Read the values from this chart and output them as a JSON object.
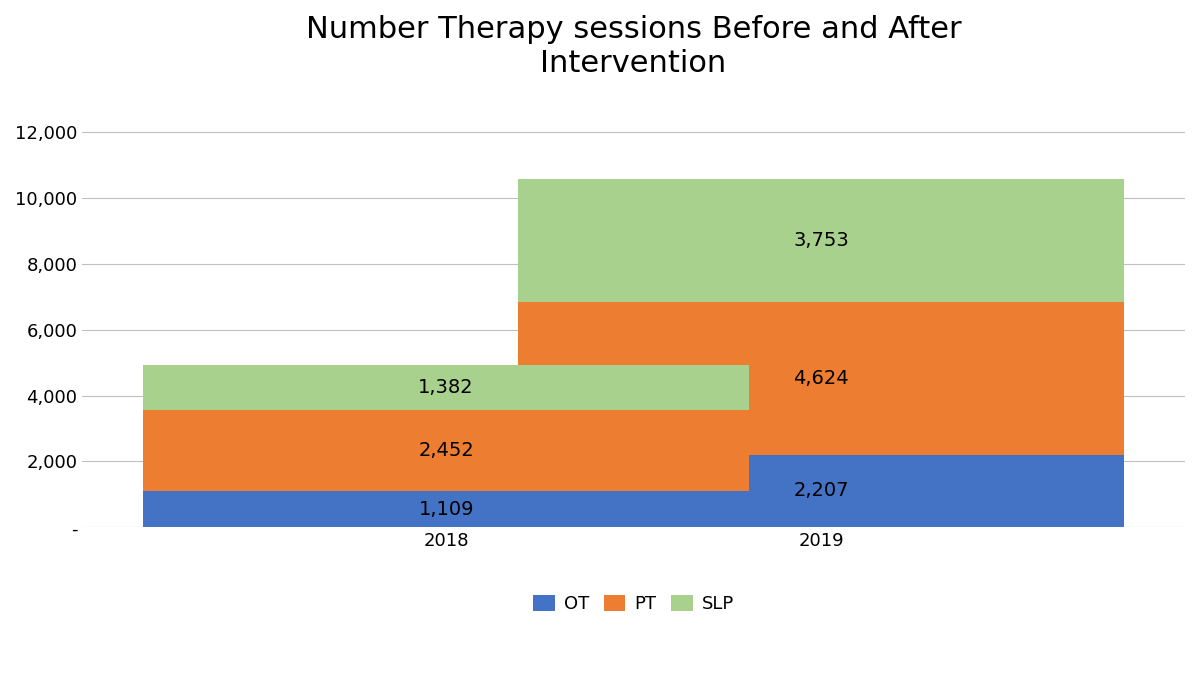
{
  "title": "Number Therapy sessions Before and After\nIntervention",
  "categories": [
    "2018",
    "2019"
  ],
  "ot_values": [
    1109,
    2207
  ],
  "pt_values": [
    2452,
    4624
  ],
  "slp_values": [
    1382,
    3753
  ],
  "ot_color": "#4472C4",
  "pt_color": "#ED7D31",
  "slp_color": "#A9D18E",
  "background_color": "#FFFFFF",
  "ylim": [
    0,
    13000
  ],
  "yticks": [
    0,
    2000,
    4000,
    6000,
    8000,
    10000,
    12000
  ],
  "ytick_labels": [
    "-",
    "2,000",
    "4,000",
    "6,000",
    "8,000",
    "10,000",
    "12,000"
  ],
  "title_fontsize": 22,
  "tick_fontsize": 13,
  "legend_fontsize": 13,
  "bar_width": 0.55,
  "annotation_fontsize": 14,
  "x_positions": [
    0.33,
    0.67
  ],
  "xlim": [
    0.0,
    1.0
  ]
}
